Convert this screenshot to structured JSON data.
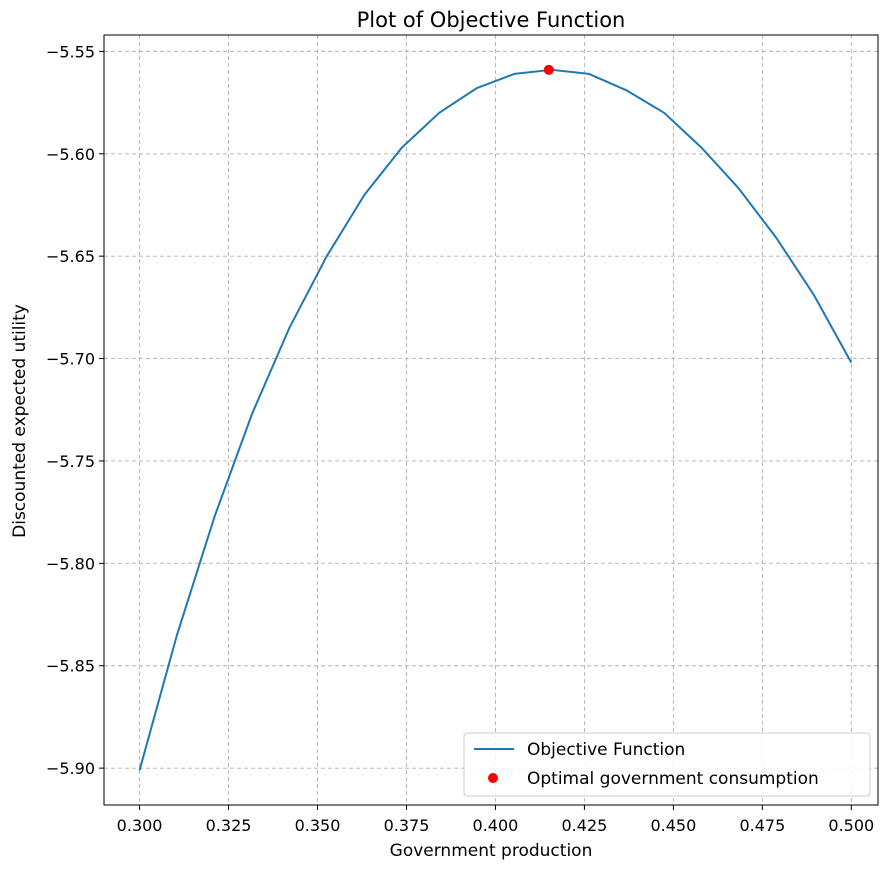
{
  "chart_data": {
    "type": "line",
    "title": "Plot of Objective Function",
    "xlabel": "Government production",
    "ylabel": "Discounted expected utility",
    "xlim": [
      0.29,
      0.5075
    ],
    "ylim": [
      -5.918,
      -5.542
    ],
    "xticks": [
      {
        "value": 0.3,
        "label": "0.300"
      },
      {
        "value": 0.325,
        "label": "0.325"
      },
      {
        "value": 0.35,
        "label": "0.350"
      },
      {
        "value": 0.375,
        "label": "0.375"
      },
      {
        "value": 0.4,
        "label": "0.400"
      },
      {
        "value": 0.425,
        "label": "0.425"
      },
      {
        "value": 0.45,
        "label": "0.450"
      },
      {
        "value": 0.475,
        "label": "0.475"
      },
      {
        "value": 0.5,
        "label": "0.500"
      }
    ],
    "yticks": [
      {
        "value": -5.55,
        "label": "−5.55"
      },
      {
        "value": -5.6,
        "label": "−5.60"
      },
      {
        "value": -5.65,
        "label": "−5.65"
      },
      {
        "value": -5.7,
        "label": "−5.70"
      },
      {
        "value": -5.75,
        "label": "−5.75"
      },
      {
        "value": -5.8,
        "label": "−5.80"
      },
      {
        "value": -5.85,
        "label": "−5.85"
      },
      {
        "value": -5.9,
        "label": "−5.90"
      }
    ],
    "grid": true,
    "legend_position": "bottom-right",
    "series": [
      {
        "name": "Objective Function",
        "type": "line",
        "color": "#1f77b4",
        "x": [
          0.3,
          0.3105,
          0.3211,
          0.3316,
          0.3421,
          0.3526,
          0.3632,
          0.3737,
          0.3842,
          0.3947,
          0.4053,
          0.4158,
          0.4263,
          0.4368,
          0.4474,
          0.4579,
          0.4684,
          0.4789,
          0.4895,
          0.5
        ],
        "y": [
          -5.901,
          -5.835,
          -5.777,
          -5.727,
          -5.685,
          -5.65,
          -5.62,
          -5.597,
          -5.58,
          -5.568,
          -5.561,
          -5.559,
          -5.561,
          -5.569,
          -5.58,
          -5.597,
          -5.617,
          -5.641,
          -5.669,
          -5.702
        ]
      },
      {
        "name": "Optimal government consumption",
        "type": "scatter",
        "color": "#ff0000",
        "x": [
          0.415
        ],
        "y": [
          -5.559
        ]
      }
    ]
  }
}
